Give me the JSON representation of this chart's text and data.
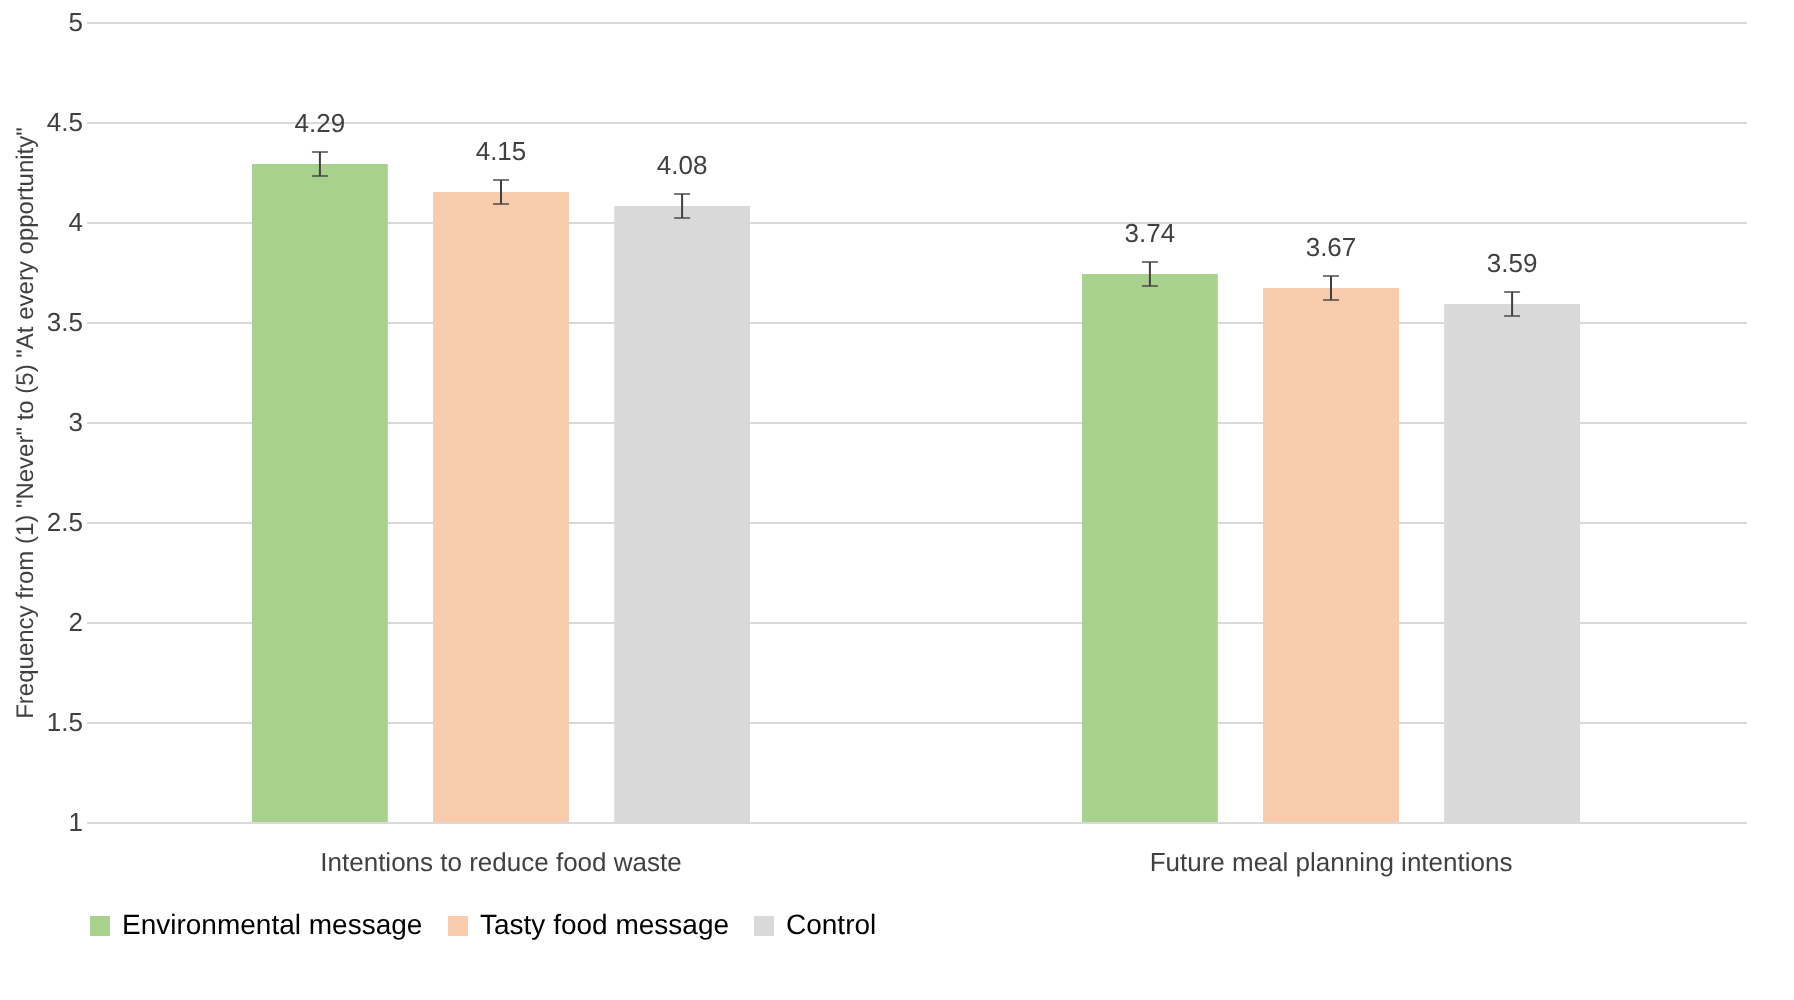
{
  "chart_data": {
    "type": "bar",
    "ylabel": "Frequency from (1) \"Never\" to (5) \"At every opportunity\"",
    "categories": [
      "Intentions to reduce food waste",
      "Future meal planning intentions"
    ],
    "series": [
      {
        "name": "Environmental message",
        "color": "#a9d18e",
        "values": [
          4.29,
          3.74
        ],
        "errors": [
          0.06,
          0.06
        ]
      },
      {
        "name": "Tasty food message",
        "color": "#f8cbad",
        "values": [
          4.15,
          3.67
        ],
        "errors": [
          0.06,
          0.06
        ]
      },
      {
        "name": "Control",
        "color": "#d9d9d9",
        "values": [
          4.08,
          3.59
        ],
        "errors": [
          0.06,
          0.06
        ]
      }
    ],
    "ylim": [
      1,
      5
    ],
    "yticks": [
      1,
      1.5,
      2,
      2.5,
      3,
      3.5,
      4,
      4.5,
      5
    ],
    "grid": "y",
    "legend": "bottom",
    "data_labels": true
  }
}
